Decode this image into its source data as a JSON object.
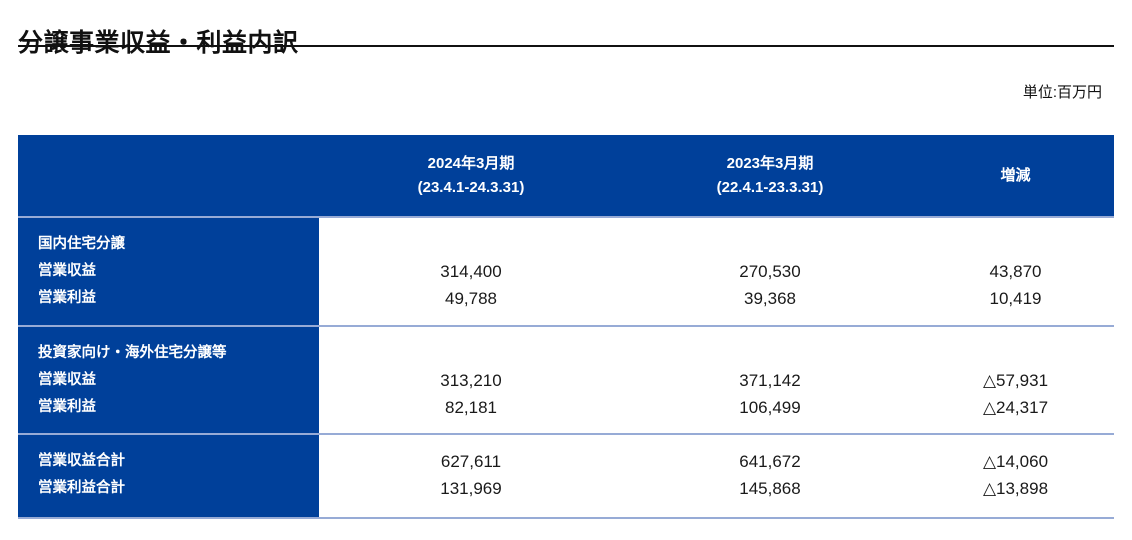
{
  "page": {
    "title": "分譲事業収益・利益内訳",
    "unit_label": "単位:百万円"
  },
  "colors": {
    "header_blue": "#00409a",
    "separator_blue": "#97abd6",
    "title_rule": "#111111"
  },
  "table": {
    "columns": [
      {
        "label_line1": "2024年3月期",
        "label_line2": "(23.4.1-24.3.31)"
      },
      {
        "label_line1": "2023年3月期",
        "label_line2": "(22.4.1-23.3.31)"
      },
      {
        "label_line1": "増減",
        "label_line2": ""
      }
    ],
    "rows": [
      {
        "category": "国内住宅分譲",
        "lines": [
          {
            "label": "営業収益",
            "fy2024": "314,400",
            "fy2023": "270,530",
            "change": "43,870"
          },
          {
            "label": "営業利益",
            "fy2024": "49,788",
            "fy2023": "39,368",
            "change": "10,419"
          }
        ]
      },
      {
        "category": "投資家向け・海外住宅分譲等",
        "lines": [
          {
            "label": "営業収益",
            "fy2024": "313,210",
            "fy2023": "371,142",
            "change": "△57,931"
          },
          {
            "label": "営業利益",
            "fy2024": "82,181",
            "fy2023": "106,499",
            "change": "△24,317"
          }
        ]
      },
      {
        "category": "",
        "lines": [
          {
            "label": "営業収益合計",
            "fy2024": "627,611",
            "fy2023": "641,672",
            "change": "△14,060"
          },
          {
            "label": "営業利益合計",
            "fy2024": "131,969",
            "fy2023": "145,868",
            "change": "△13,898"
          }
        ]
      }
    ]
  }
}
